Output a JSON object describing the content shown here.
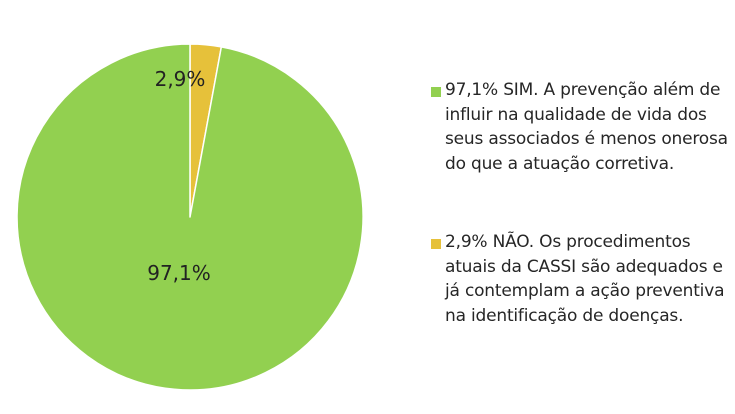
{
  "chart_data": {
    "type": "pie",
    "title": "",
    "start_angle_deg": 0,
    "direction": "clockwise",
    "slices": [
      {
        "label": "2,9%",
        "value": 2.9,
        "color": "#E6C13A",
        "legend": "2,9% NÃO. Os procedimentos atuais da CASSI são adequados e já contemplam a ação preventiva na identificação de doenças."
      },
      {
        "label": "97,1%",
        "value": 97.1,
        "color": "#92D050",
        "legend": "97,1% SIM. A prevenção além de influir na qualidade de vida dos seus associados é menos onerosa do que a atuação corretiva."
      }
    ],
    "legend_order": [
      1,
      0
    ],
    "legend_placement": "right",
    "slice_border_color": "#ffffff"
  }
}
